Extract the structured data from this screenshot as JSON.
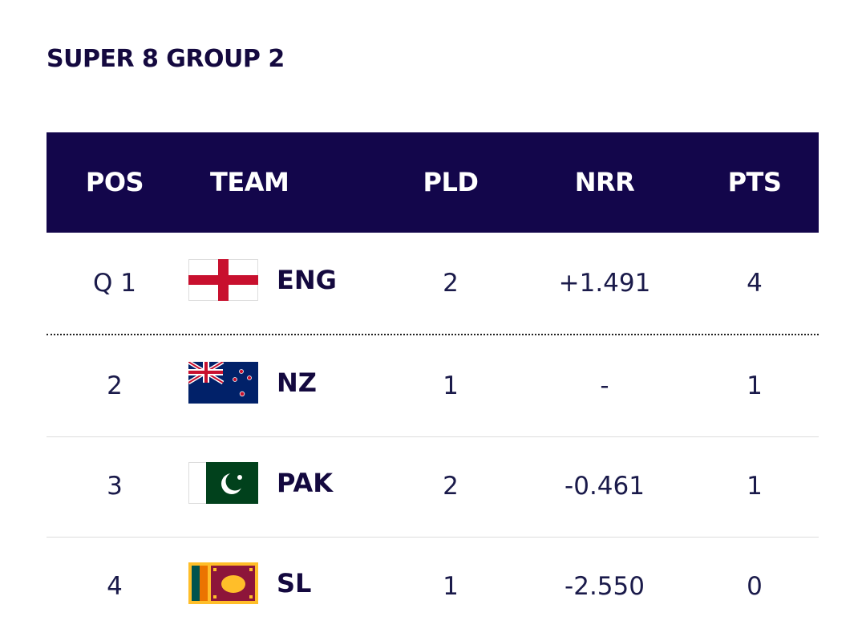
{
  "title": "SUPER 8 GROUP 2",
  "table": {
    "headers": [
      "POS",
      "TEAM",
      "PLD",
      "NRR",
      "PTS"
    ],
    "rows": [
      [
        "Q 1",
        "ENG",
        "2",
        "+1.491",
        "4"
      ],
      [
        "2",
        "NZ",
        "1",
        "-",
        "1"
      ],
      [
        "3",
        "PAK",
        "2",
        "-0.461",
        "1"
      ],
      [
        "4",
        "SL",
        "1",
        "-2.550",
        "0"
      ]
    ]
  }
}
